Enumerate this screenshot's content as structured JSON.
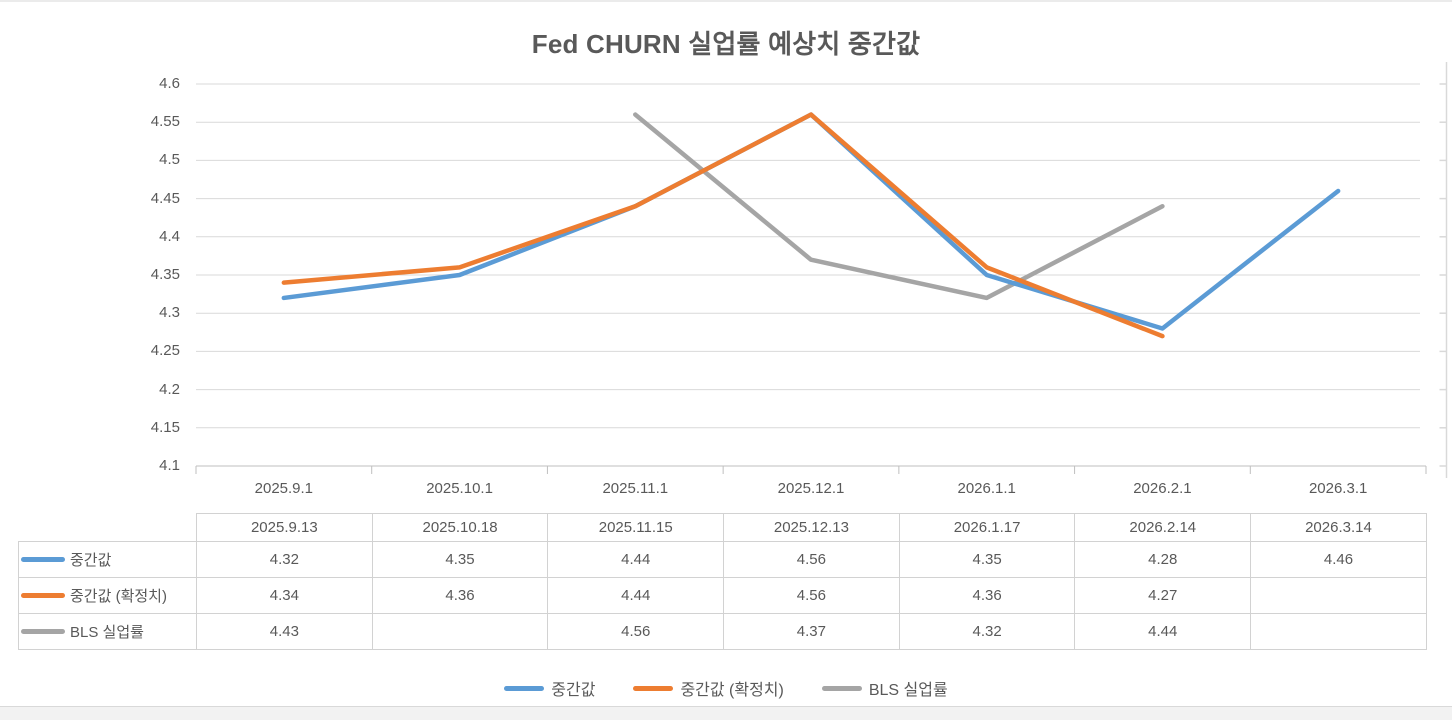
{
  "chart_data": {
    "type": "line",
    "title": "Fed CHURN 실업률 예상치 중간값",
    "categories": [
      "2025.9.1",
      "2025.10.1",
      "2025.11.1",
      "2025.12.1",
      "2026.1.1",
      "2026.2.1",
      "2026.3.1"
    ],
    "table_dates": [
      "2025.9.13",
      "2025.10.18",
      "2025.11.15",
      "2025.12.13",
      "2026.1.17",
      "2026.2.14",
      "2026.3.14"
    ],
    "series": [
      {
        "name": "중간값",
        "color": "#5B9BD5",
        "values": [
          4.32,
          4.35,
          4.44,
          4.56,
          4.35,
          4.28,
          4.46
        ]
      },
      {
        "name": "중간값 (확정치)",
        "color": "#ED7D31",
        "values": [
          4.34,
          4.36,
          4.44,
          4.56,
          4.36,
          4.27,
          null
        ]
      },
      {
        "name": "BLS 실업률",
        "color": "#A5A5A5",
        "values": [
          4.43,
          null,
          4.56,
          4.37,
          4.32,
          4.44,
          null
        ]
      }
    ],
    "ylim": [
      4.1,
      4.6
    ],
    "yticks": [
      4.6,
      4.55,
      4.5,
      4.45,
      4.4,
      4.35,
      4.3,
      4.25,
      4.2,
      4.15,
      4.1
    ],
    "ytick_labels": [
      "4.6",
      "4.55",
      "4.5",
      "4.45",
      "4.4",
      "4.35",
      "4.3",
      "4.25",
      "4.2",
      "4.15",
      "4.1"
    ],
    "grid": true,
    "legend_position": "bottom",
    "grid_color": "#D9D9D9",
    "axis_color": "#BFBFBF",
    "text_color": "#595959"
  }
}
